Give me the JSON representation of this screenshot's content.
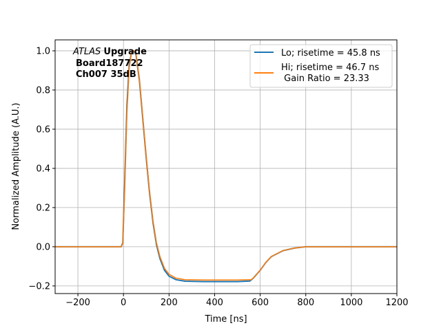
{
  "chart_data": {
    "type": "line",
    "xlabel": "Time [ns]",
    "ylabel": "Normalized Amplitude (A.U.)",
    "xlim": [
      -300,
      1200
    ],
    "ylim": [
      -0.239,
      1.056
    ],
    "xticks": [
      -200,
      0,
      200,
      400,
      600,
      800,
      1000,
      1200
    ],
    "yticks": [
      -0.2,
      0.0,
      0.2,
      0.4,
      0.6,
      0.8,
      1.0
    ],
    "grid": true,
    "legend_position": "top-right",
    "annotation": {
      "italic": "ATLAS",
      "bold": "Upgrade",
      "line2": "Board187722",
      "line3": "Ch007 35dB"
    },
    "series": [
      {
        "name": "Lo; risetime = 45.8 ns",
        "color": "#1f77b4",
        "x": [
          -300,
          -10,
          -3,
          5,
          15,
          25,
          35,
          45,
          55,
          70,
          85,
          100,
          115,
          130,
          145,
          160,
          180,
          200,
          230,
          270,
          350,
          500,
          555,
          570,
          600,
          625,
          650,
          700,
          750,
          800,
          1200
        ],
        "y": [
          0,
          0,
          0.02,
          0.32,
          0.72,
          0.93,
          0.99,
          1.0,
          0.98,
          0.85,
          0.65,
          0.45,
          0.27,
          0.12,
          0.01,
          -0.06,
          -0.12,
          -0.15,
          -0.168,
          -0.176,
          -0.178,
          -0.178,
          -0.175,
          -0.16,
          -0.12,
          -0.08,
          -0.05,
          -0.02,
          -0.007,
          0,
          0
        ]
      },
      {
        "name": "Hi; risetime = 46.7 ns\n Gain Ratio = 23.33",
        "color": "#ff7f0e",
        "x": [
          -300,
          -10,
          -3,
          5,
          15,
          25,
          35,
          45,
          55,
          70,
          85,
          100,
          115,
          130,
          145,
          160,
          180,
          200,
          230,
          270,
          350,
          500,
          560,
          575,
          600,
          625,
          650,
          700,
          750,
          800,
          1200
        ],
        "y": [
          0,
          0,
          0.015,
          0.28,
          0.68,
          0.91,
          0.99,
          1.0,
          0.985,
          0.86,
          0.66,
          0.46,
          0.28,
          0.13,
          0.02,
          -0.05,
          -0.11,
          -0.14,
          -0.16,
          -0.168,
          -0.17,
          -0.17,
          -0.168,
          -0.155,
          -0.12,
          -0.08,
          -0.05,
          -0.02,
          -0.007,
          0,
          0
        ]
      }
    ]
  },
  "legend": {
    "lo_label": "Lo; risetime = 45.8 ns",
    "hi_label_1": "Hi; risetime = 46.7 ns",
    "hi_label_2": " Gain Ratio = 23.33"
  }
}
